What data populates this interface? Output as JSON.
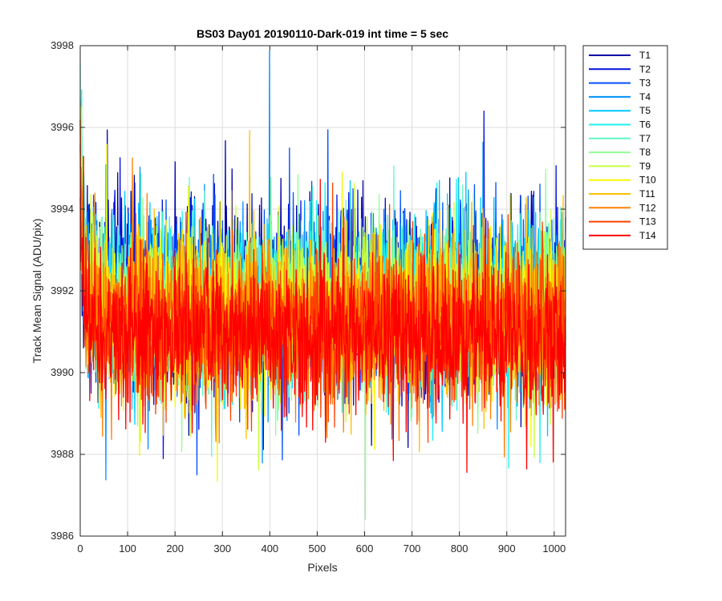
{
  "chart_data": {
    "type": "line",
    "title": "BS03 Day01 20190110-Dark-019 int time = 5 sec",
    "xlabel": "Pixels",
    "ylabel": "Track Mean Signal (ADU/pix)",
    "xlim": [
      0,
      1024
    ],
    "ylim": [
      3986,
      3998
    ],
    "xticks": [
      0,
      100,
      200,
      300,
      400,
      500,
      600,
      700,
      800,
      900,
      1000
    ],
    "yticks": [
      3986,
      3988,
      3990,
      3992,
      3994,
      3996,
      3998
    ],
    "grid": true,
    "legend_position": "outside-top-right",
    "n_points": 1024,
    "note_series": "Each series is a noisy trace; values summarized by mean and spread. Start of each trace begins elevated near x=0.",
    "series": [
      {
        "name": "T1",
        "color": "#0000a8",
        "mean": 3991.9,
        "spread": 1.15,
        "start": 3995.2
      },
      {
        "name": "T2",
        "color": "#0010e0",
        "mean": 3991.8,
        "spread": 1.15,
        "start": 3995.0
      },
      {
        "name": "T3",
        "color": "#0050ff",
        "mean": 3991.8,
        "spread": 1.1,
        "start": 3995.5
      },
      {
        "name": "T4",
        "color": "#0090ff",
        "mean": 3991.7,
        "spread": 1.1,
        "start": 3995.8
      },
      {
        "name": "T5",
        "color": "#00c8ff",
        "mean": 3991.7,
        "spread": 1.1,
        "start": 3996.8
      },
      {
        "name": "T6",
        "color": "#20f0f0",
        "mean": 3991.7,
        "spread": 1.1,
        "start": 3997.2
      },
      {
        "name": "T7",
        "color": "#60f8c8",
        "mean": 3991.6,
        "spread": 1.05,
        "start": 3996.0
      },
      {
        "name": "T8",
        "color": "#90ff90",
        "mean": 3991.6,
        "spread": 1.05,
        "start": 3995.6
      },
      {
        "name": "T9",
        "color": "#c8ff40",
        "mean": 3991.5,
        "spread": 1.05,
        "start": 3995.4
      },
      {
        "name": "T10",
        "color": "#f8f800",
        "mean": 3991.4,
        "spread": 1.05,
        "start": 3995.3
      },
      {
        "name": "T11",
        "color": "#ffc000",
        "mean": 3991.3,
        "spread": 1.05,
        "start": 3995.0
      },
      {
        "name": "T12",
        "color": "#ff8000",
        "mean": 3991.2,
        "spread": 1.05,
        "start": 3994.8
      },
      {
        "name": "T13",
        "color": "#ff4000",
        "mean": 3991.1,
        "spread": 1.0,
        "start": 3995.2
      },
      {
        "name": "T14",
        "color": "#ff0000",
        "mean": 3990.9,
        "spread": 1.0,
        "start": 3995.5
      }
    ]
  }
}
